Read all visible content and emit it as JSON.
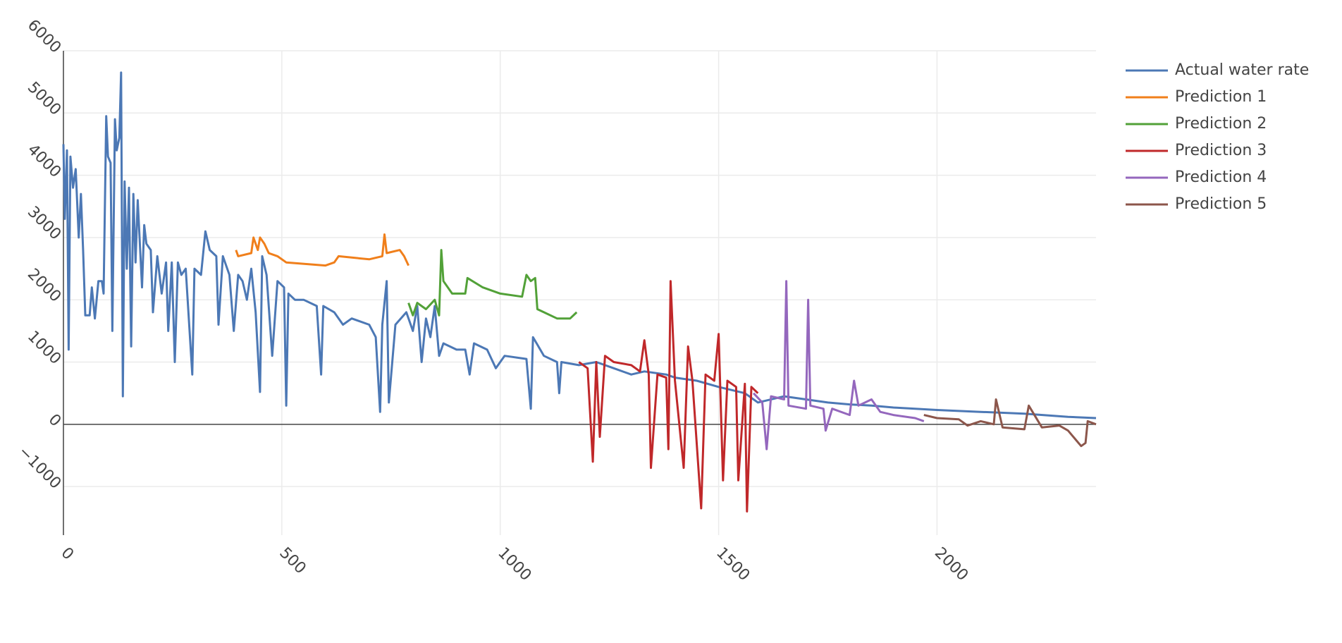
{
  "chart_data": {
    "type": "line",
    "xlim": [
      0,
      2364
    ],
    "ylim": [
      -1780,
      6000
    ],
    "xticks": [
      0,
      500,
      1000,
      1500,
      2000
    ],
    "yticks": [
      {
        "value": -1000,
        "label": "−1000"
      },
      0,
      1000,
      2000,
      3000,
      4000,
      5000,
      6000
    ],
    "grid": true,
    "legend": "right",
    "series": [
      {
        "name": "Actual water rate",
        "color": "#4c78b5",
        "x": [
          0,
          3,
          8,
          12,
          16,
          22,
          28,
          35,
          40,
          45,
          50,
          60,
          65,
          72,
          80,
          88,
          92,
          98,
          102,
          108,
          112,
          118,
          122,
          128,
          132,
          136,
          140,
          145,
          150,
          155,
          160,
          165,
          170,
          180,
          185,
          190,
          200,
          205,
          215,
          225,
          235,
          240,
          248,
          255,
          262,
          270,
          280,
          295,
          300,
          315,
          325,
          335,
          350,
          355,
          365,
          380,
          390,
          400,
          410,
          420,
          430,
          440,
          450,
          455,
          465,
          478,
          490,
          505,
          510,
          515,
          530,
          550,
          580,
          590,
          595,
          620,
          640,
          660,
          700,
          715,
          725,
          730,
          740,
          745,
          760,
          785,
          800,
          810,
          820,
          830,
          840,
          850,
          860,
          870,
          900,
          920,
          930,
          940,
          970,
          990,
          1010,
          1060,
          1070,
          1075,
          1100,
          1130,
          1135,
          1140,
          1180,
          1220,
          1260,
          1300,
          1330,
          1380,
          1400,
          1450,
          1500,
          1560,
          1590,
          1650,
          1700,
          1750,
          1800,
          1850,
          1900,
          2000,
          2100,
          2200,
          2300,
          2364
        ],
        "values": [
          4500,
          3300,
          4400,
          1200,
          4300,
          3800,
          4100,
          3000,
          3700,
          2800,
          1750,
          1750,
          2200,
          1700,
          2300,
          2300,
          2100,
          4950,
          4300,
          4200,
          1500,
          4900,
          4400,
          4600,
          5650,
          450,
          3900,
          2500,
          3800,
          1250,
          3700,
          2600,
          3600,
          2200,
          3200,
          2900,
          2800,
          1800,
          2700,
          2100,
          2600,
          1500,
          2600,
          1000,
          2600,
          2400,
          2500,
          800,
          2500,
          2400,
          3100,
          2800,
          2700,
          1600,
          2700,
          2400,
          1500,
          2400,
          2300,
          2000,
          2500,
          1800,
          520,
          2700,
          2400,
          1100,
          2300,
          2200,
          300,
          2100,
          2000,
          2000,
          1900,
          800,
          1900,
          1800,
          1600,
          1700,
          1600,
          1400,
          200,
          1600,
          2300,
          350,
          1600,
          1800,
          1500,
          1900,
          1000,
          1700,
          1400,
          1900,
          1100,
          1300,
          1200,
          1200,
          800,
          1300,
          1200,
          900,
          1100,
          1050,
          250,
          1400,
          1100,
          1000,
          500,
          1000,
          950,
          1000,
          900,
          800,
          850,
          800,
          750,
          700,
          600,
          500,
          350,
          450,
          400,
          350,
          320,
          300,
          270,
          230,
          200,
          170,
          120,
          100
        ]
      },
      {
        "name": "Prediction 1",
        "color": "#f07f1b",
        "x": [
          395,
          400,
          430,
          435,
          445,
          450,
          460,
          470,
          490,
          510,
          600,
          620,
          630,
          700,
          730,
          735,
          740,
          770,
          780,
          790
        ],
        "values": [
          2800,
          2700,
          2750,
          3000,
          2800,
          3000,
          2900,
          2750,
          2700,
          2600,
          2550,
          2600,
          2700,
          2650,
          2700,
          3050,
          2750,
          2800,
          2700,
          2550
        ]
      },
      {
        "name": "Prediction 2",
        "color": "#52a138",
        "x": [
          790,
          800,
          810,
          830,
          850,
          860,
          865,
          870,
          890,
          920,
          925,
          960,
          1000,
          1050,
          1060,
          1070,
          1080,
          1085,
          1100,
          1130,
          1160,
          1175
        ],
        "values": [
          1950,
          1750,
          1950,
          1850,
          2000,
          1750,
          2800,
          2300,
          2100,
          2100,
          2350,
          2200,
          2100,
          2050,
          2400,
          2300,
          2350,
          1850,
          1800,
          1700,
          1700,
          1800
        ]
      },
      {
        "name": "Prediction 3",
        "color": "#c0282a",
        "x": [
          1180,
          1200,
          1212,
          1220,
          1228,
          1240,
          1260,
          1300,
          1320,
          1330,
          1340,
          1345,
          1360,
          1380,
          1385,
          1390,
          1400,
          1420,
          1430,
          1440,
          1460,
          1470,
          1490,
          1500,
          1510,
          1520,
          1540,
          1545,
          1560,
          1565,
          1575,
          1590
        ],
        "values": [
          1000,
          900,
          -600,
          1000,
          -200,
          1100,
          1000,
          950,
          850,
          1350,
          800,
          -700,
          800,
          750,
          -400,
          2300,
          700,
          -700,
          1250,
          700,
          -1350,
          800,
          700,
          1450,
          -900,
          700,
          600,
          -900,
          650,
          -1400,
          600,
          500
        ]
      },
      {
        "name": "Prediction 4",
        "color": "#9467bd",
        "x": [
          1580,
          1600,
          1610,
          1620,
          1650,
          1655,
          1660,
          1700,
          1705,
          1710,
          1740,
          1745,
          1760,
          1800,
          1810,
          1820,
          1850,
          1870,
          1900,
          1950,
          1970
        ],
        "values": [
          500,
          350,
          -400,
          450,
          400,
          2300,
          300,
          250,
          2000,
          300,
          250,
          -100,
          250,
          150,
          700,
          300,
          400,
          200,
          150,
          100,
          50
        ]
      },
      {
        "name": "Prediction 5",
        "color": "#8c564b",
        "x": [
          1970,
          2000,
          2050,
          2070,
          2100,
          2130,
          2135,
          2150,
          2200,
          2210,
          2240,
          2280,
          2300,
          2330,
          2340,
          2345,
          2364
        ],
        "values": [
          150,
          100,
          80,
          -20,
          50,
          0,
          400,
          -50,
          -80,
          300,
          -50,
          -20,
          -100,
          -350,
          -300,
          50,
          0
        ]
      }
    ]
  }
}
